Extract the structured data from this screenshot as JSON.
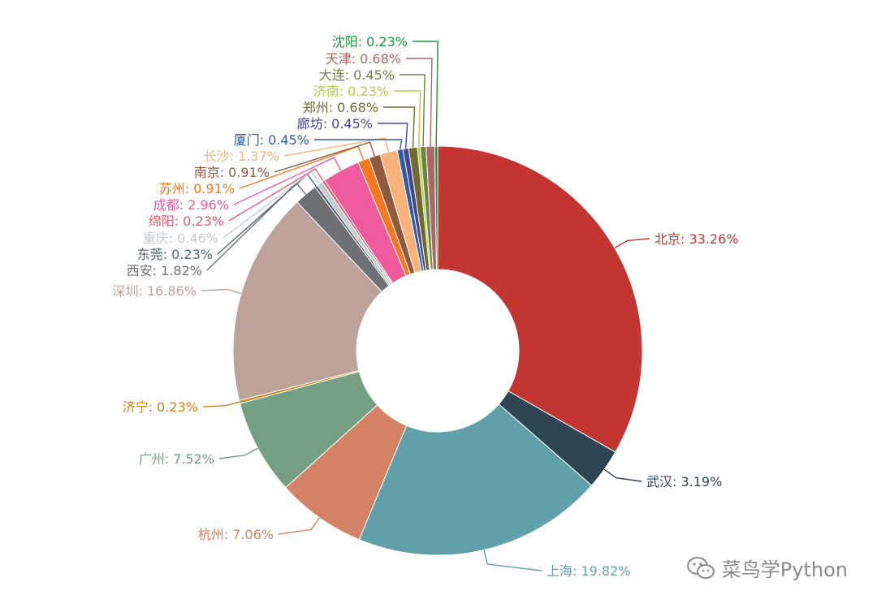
{
  "chart_data": {
    "type": "pie",
    "variant": "donut",
    "series": [
      {
        "name": "北京",
        "label": "北京: 33.26%",
        "value": 33.26,
        "color": "#c23531"
      },
      {
        "name": "武汉",
        "label": "武汉: 3.19%",
        "value": 3.19,
        "color": "#2f4554"
      },
      {
        "name": "上海",
        "label": "上海: 19.82%",
        "value": 19.82,
        "color": "#61a0a8"
      },
      {
        "name": "杭州",
        "label": "杭州: 7.06%",
        "value": 7.06,
        "color": "#d48265"
      },
      {
        "name": "广州",
        "label": "广州: 7.52%",
        "value": 7.52,
        "color": "#749f83"
      },
      {
        "name": "济宁",
        "label": "济宁: 0.23%",
        "value": 0.23,
        "color": "#ca8622"
      },
      {
        "name": "深圳",
        "label": "深圳: 16.86%",
        "value": 16.86,
        "color": "#bda29a"
      },
      {
        "name": "西安",
        "label": "西安: 1.82%",
        "value": 1.82,
        "color": "#6e7074"
      },
      {
        "name": "东莞",
        "label": "东莞: 0.23%",
        "value": 0.23,
        "color": "#546570"
      },
      {
        "name": "重庆",
        "label": "重庆: 0.46%",
        "value": 0.46,
        "color": "#c4ccd3"
      },
      {
        "name": "绵阳",
        "label": "绵阳: 0.23%",
        "value": 0.23,
        "color": "#f05b72"
      },
      {
        "name": "成都",
        "label": "成都: 2.96%",
        "value": 2.96,
        "color": "#ef5b9c"
      },
      {
        "name": "苏州",
        "label": "苏州: 0.91%",
        "value": 0.91,
        "color": "#f47920"
      },
      {
        "name": "南京",
        "label": "南京: 0.91%",
        "value": 0.91,
        "color": "#905a3d"
      },
      {
        "name": "长沙",
        "label": "长沙: 1.37%",
        "value": 1.37,
        "color": "#fab27b"
      },
      {
        "name": "厦门",
        "label": "厦门: 0.45%",
        "value": 0.45,
        "color": "#2a5caa"
      },
      {
        "name": "廊坊",
        "label": "廊坊: 0.45%",
        "value": 0.45,
        "color": "#444693"
      },
      {
        "name": "郑州",
        "label": "郑州: 0.68%",
        "value": 0.68,
        "color": "#726930"
      },
      {
        "name": "济南",
        "label": "济南: 0.23%",
        "value": 0.23,
        "color": "#b2d235"
      },
      {
        "name": "大连",
        "label": "大连: 0.45%",
        "value": 0.45,
        "color": "#6d8346"
      },
      {
        "name": "天津",
        "label": "天津: 0.68%",
        "value": 0.68,
        "color": "#ac6767"
      },
      {
        "name": "沈阳",
        "label": "沈阳: 0.23%",
        "value": 0.23,
        "color": "#1d953f"
      }
    ]
  },
  "watermark": {
    "icon": "wechat-icon",
    "text": "菜鸟学Python"
  }
}
